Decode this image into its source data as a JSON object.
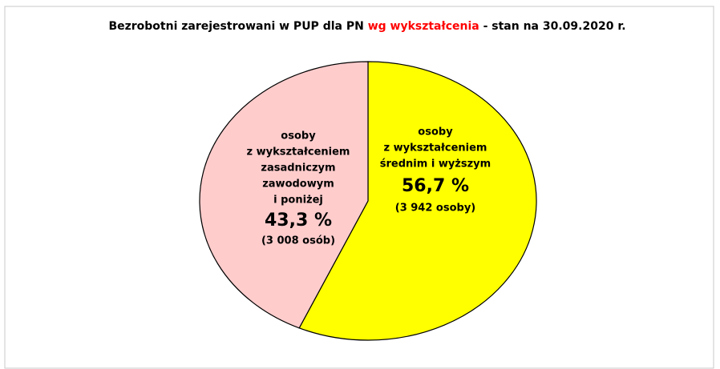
{
  "chart_data": {
    "type": "pie",
    "title": [
      "Bezrobotni zarejestrowani w PUP dla PN",
      "wg wykształcenia",
      "- stan na 30.09.2020 r."
    ],
    "title_colors": [
      "#000000",
      "#ff0000",
      "#000000"
    ],
    "categories": [
      [
        "osoby",
        "z wykształceniem",
        "średnim i wyższym"
      ],
      [
        "osoby",
        "z wykształceniem",
        "zasadniczym",
        "zawodowym",
        "i poniżej"
      ]
    ],
    "values": [
      56.7,
      43.3
    ],
    "value_labels": [
      "56,7 %",
      "43,3 %"
    ],
    "counts": [
      3942,
      3008
    ],
    "count_labels": [
      "(3 942 osoby)",
      "(3 008 osób)"
    ],
    "colors": [
      "#ffff00",
      "#ffcccc"
    ]
  }
}
